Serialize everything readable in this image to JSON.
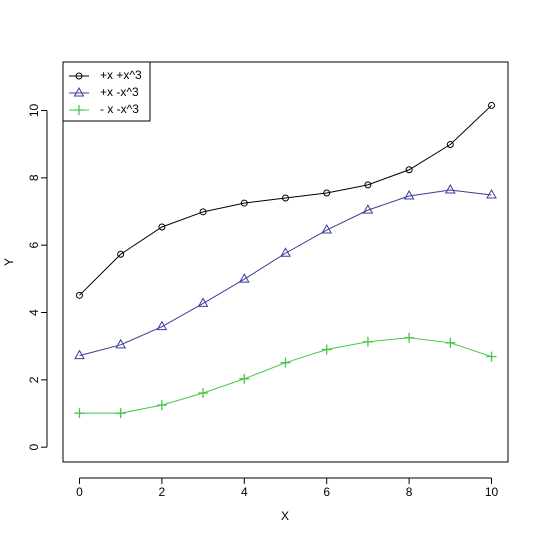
{
  "chart_data": {
    "type": "line",
    "x_label": "X",
    "y_label": "Y",
    "x": [
      0,
      1,
      2,
      3,
      4,
      5,
      6,
      7,
      8,
      9,
      10
    ],
    "series": [
      {
        "name": "+x +x^3",
        "color": "#000000",
        "marker": "circle",
        "values": [
          4.51,
          5.73,
          6.54,
          6.99,
          7.25,
          7.4,
          7.55,
          7.79,
          8.24,
          8.99,
          10.15
        ]
      },
      {
        "name": "+x -x^3",
        "color": "#3b3b9e",
        "marker": "triangle",
        "values": [
          2.72,
          3.04,
          3.58,
          4.27,
          4.99,
          5.76,
          6.45,
          7.04,
          7.46,
          7.64,
          7.49
        ]
      },
      {
        "name": "- x -x^3",
        "color": "#45c845",
        "marker": "plus",
        "values": [
          1.01,
          1.01,
          1.25,
          1.61,
          2.03,
          2.51,
          2.9,
          3.13,
          3.25,
          3.1,
          2.69
        ]
      }
    ],
    "xlim": [
      -0.4,
      10.4
    ],
    "xticks": [
      0,
      2,
      4,
      6,
      8,
      10
    ],
    "ylim": [
      -0.44,
      11.44
    ],
    "yticks": [
      0,
      2,
      4,
      6,
      8,
      10
    ],
    "legend": "top-left"
  }
}
